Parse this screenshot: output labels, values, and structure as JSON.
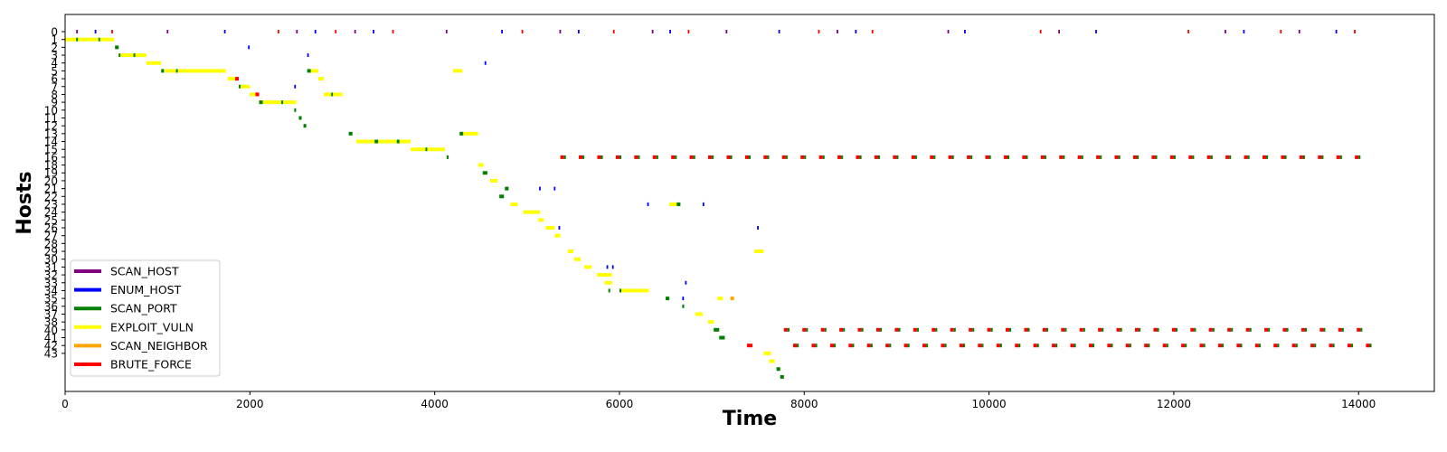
{
  "chart_data": {
    "type": "timeline",
    "xlabel": "Time",
    "ylabel": "Hosts",
    "xlim": [
      0,
      14820
    ],
    "x_ticks": [
      0,
      2000,
      4000,
      6000,
      8000,
      10000,
      12000,
      14000
    ],
    "x_tick_labels": [
      "0",
      "2000",
      "4000",
      "6000",
      "8000",
      "10000",
      "12000",
      "14000"
    ],
    "y_tick_labels": [
      "0",
      "1",
      "2",
      "3",
      "4",
      "5",
      "6",
      "7",
      "8",
      "9",
      "10",
      "11",
      "12",
      "13",
      "14",
      "15",
      "16",
      "18",
      "19",
      "20",
      "21",
      "22",
      "23",
      "24",
      "25",
      "26",
      "27",
      "28",
      "29",
      "30",
      "31",
      "32",
      "33",
      "34",
      "35",
      "36",
      "37",
      "38",
      "40",
      "41",
      "42",
      "43"
    ],
    "grid": false,
    "legend_position": "lower-left",
    "legend": [
      {
        "name": "SCAN_HOST",
        "color": "#800080"
      },
      {
        "name": "ENUM_HOST",
        "color": "#0000ff"
      },
      {
        "name": "SCAN_PORT",
        "color": "#008000"
      },
      {
        "name": "EXPLOIT_VULN",
        "color": "#ffff00"
      },
      {
        "name": "SCAN_NEIGHBOR",
        "color": "#ffa500"
      },
      {
        "name": "BRUTE_FORCE",
        "color": "#ff0000"
      }
    ]
  }
}
